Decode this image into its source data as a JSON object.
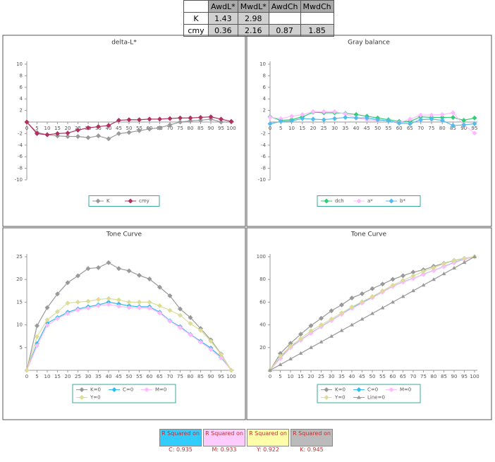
{
  "table": {
    "columns": [
      "AwdL*",
      "MwdL*",
      "AwdCh",
      "MwdCh"
    ],
    "rows": [
      {
        "label": "K",
        "cells": [
          "1.43",
          "2.98"
        ]
      },
      {
        "label": "cmy",
        "cells": [
          "0.36",
          "2.16",
          "0.87",
          "1.85"
        ]
      }
    ]
  },
  "chart_data": [
    {
      "type": "line",
      "title": "delta-L*",
      "legend": "bottom",
      "x": [
        0,
        5,
        10,
        15,
        20,
        25,
        30,
        35,
        40,
        45,
        50,
        55,
        60,
        65,
        70,
        75,
        80,
        85,
        90,
        95,
        100
      ],
      "xlim": [
        0,
        100
      ],
      "xticks": [
        0,
        5,
        10,
        15,
        20,
        25,
        30,
        35,
        40,
        45,
        50,
        55,
        60,
        65,
        70,
        75,
        80,
        85,
        90,
        95,
        100
      ],
      "ylim": [
        -10,
        10
      ],
      "yticks": [
        -10,
        -8,
        -6,
        -4,
        -2,
        2,
        4,
        6,
        8,
        10
      ],
      "series": [
        {
          "name": "K",
          "color": "#999999",
          "values": [
            0,
            -1.8,
            -2.2,
            -2.4,
            -2.5,
            -2.5,
            -2.7,
            -2.4,
            -2.9,
            -2.0,
            -1.8,
            -1.5,
            -1.2,
            -1.0,
            -0.5,
            0,
            0.2,
            0.3,
            0.5,
            0,
            0
          ]
        },
        {
          "name": "cmy",
          "color": "#b03060",
          "values": [
            0,
            -2.0,
            -2.2,
            -2.0,
            -1.9,
            -1.4,
            -1.0,
            -0.8,
            -0.6,
            0.3,
            0.4,
            0.4,
            0.5,
            0.5,
            0.6,
            0.7,
            0.7,
            0.8,
            0.9,
            0.5,
            0.1
          ]
        }
      ]
    },
    {
      "type": "line",
      "title": "Gray balance",
      "legend": "bottom",
      "x": [
        0,
        5,
        10,
        15,
        20,
        25,
        30,
        35,
        40,
        45,
        50,
        55,
        60,
        65,
        70,
        75,
        80,
        85,
        90,
        95
      ],
      "xlim": [
        0,
        95
      ],
      "xticks": [
        0,
        5,
        10,
        15,
        20,
        25,
        30,
        35,
        40,
        45,
        50,
        55,
        60,
        65,
        70,
        75,
        80,
        85,
        90,
        95
      ],
      "ylim": [
        -10,
        10
      ],
      "yticks": [
        -10,
        -8,
        -6,
        -4,
        -2,
        2,
        4,
        6,
        8,
        10
      ],
      "series": [
        {
          "name": "dch",
          "color": "#33cc77",
          "values": [
            0.9,
            0.3,
            0.4,
            0.9,
            1.7,
            1.6,
            1.6,
            1.5,
            1.3,
            1.0,
            0.7,
            0.4,
            0.1,
            0.1,
            0.9,
            0.8,
            0.8,
            0.8,
            0.3,
            0.7
          ]
        },
        {
          "name": "a*",
          "color": "#ffbbff",
          "values": [
            0.8,
            0.6,
            1.0,
            1.3,
            1.8,
            1.8,
            1.8,
            1.4,
            0.7,
            0.4,
            0.3,
            0.2,
            -0.1,
            0.5,
            1.2,
            1.2,
            1.3,
            1.6,
            -0.5,
            -1.9
          ]
        },
        {
          "name": "b*",
          "color": "#55bbee",
          "values": [
            -0.3,
            0.1,
            0.2,
            0.6,
            0.5,
            0.4,
            0.6,
            0.8,
            0.7,
            0.7,
            0.4,
            0.2,
            -0.2,
            -0.3,
            0.4,
            0.5,
            0.3,
            -0.6,
            -0.5,
            -0.3
          ]
        }
      ]
    },
    {
      "type": "line",
      "title": "Tone Curve",
      "legend": "bottom",
      "x": [
        0,
        5,
        10,
        15,
        20,
        25,
        30,
        35,
        40,
        45,
        50,
        55,
        60,
        65,
        70,
        75,
        80,
        85,
        90,
        95,
        100
      ],
      "xlim": [
        0,
        100
      ],
      "xticks": [
        0,
        5,
        10,
        15,
        20,
        25,
        30,
        35,
        40,
        45,
        50,
        55,
        60,
        65,
        70,
        75,
        80,
        85,
        90,
        95,
        100
      ],
      "ylim": [
        0,
        25
      ],
      "yticks": [
        5,
        10,
        15,
        20,
        25
      ],
      "series": [
        {
          "name": "K=0",
          "color": "#999999",
          "values": [
            0,
            9.8,
            13.8,
            16.8,
            19.3,
            20.8,
            22.4,
            22.6,
            23.7,
            22.4,
            21.9,
            20.9,
            20.1,
            18.3,
            16.4,
            13.5,
            11.6,
            9.2,
            6.7,
            3.6,
            0
          ]
        },
        {
          "name": "C=0",
          "color": "#33bbee",
          "values": [
            0,
            5.9,
            10.4,
            11.6,
            12.8,
            13.5,
            14.0,
            14.4,
            15.0,
            14.6,
            14.2,
            14.0,
            14.0,
            12.8,
            10.9,
            9.6,
            7.9,
            6.4,
            4.9,
            2.9,
            0
          ]
        },
        {
          "name": "M=0",
          "color": "#ffbbff",
          "values": [
            0,
            5.4,
            9.9,
            11.4,
            12.5,
            13.3,
            13.7,
            14.2,
            14.5,
            14.1,
            13.8,
            13.8,
            13.7,
            12.6,
            10.8,
            9.4,
            7.8,
            6.2,
            4.6,
            2.7,
            0
          ]
        },
        {
          "name": "Y=0",
          "color": "#dddd99",
          "values": [
            0,
            7.4,
            11.1,
            12.9,
            14.8,
            15.0,
            15.2,
            15.6,
            15.8,
            15.5,
            15.0,
            15.0,
            15.0,
            14.2,
            13.2,
            12.1,
            10.3,
            8.8,
            6.4,
            3.5,
            0
          ]
        }
      ]
    },
    {
      "type": "line",
      "title": "Tone Curve",
      "legend": "bottom",
      "x": [
        0,
        5,
        10,
        15,
        20,
        25,
        30,
        35,
        40,
        45,
        50,
        55,
        60,
        65,
        70,
        75,
        80,
        85,
        90,
        95,
        100
      ],
      "xlim": [
        0,
        100
      ],
      "xticks": [
        0,
        5,
        10,
        15,
        20,
        25,
        30,
        35,
        40,
        45,
        50,
        55,
        60,
        65,
        70,
        75,
        80,
        85,
        90,
        95,
        100
      ],
      "ylim": [
        0,
        100
      ],
      "yticks": [
        20,
        40,
        60,
        80,
        100
      ],
      "series": [
        {
          "name": "K=0",
          "color": "#999999",
          "values": [
            0,
            14.8,
            23.8,
            31.8,
            39.3,
            45.8,
            52.4,
            57.6,
            63.7,
            67.4,
            71.9,
            75.9,
            80.1,
            83.3,
            86.4,
            88.5,
            91.6,
            94.2,
            96.7,
            98.6,
            100
          ]
        },
        {
          "name": "C=0",
          "color": "#33bbee",
          "values": [
            0,
            10.9,
            20.4,
            26.6,
            32.8,
            38.5,
            44.0,
            49.4,
            55.0,
            59.6,
            64.2,
            69.0,
            74.0,
            77.8,
            80.9,
            84.6,
            87.9,
            91.4,
            94.9,
            97.9,
            100
          ]
        },
        {
          "name": "M=0",
          "color": "#ffbbff",
          "values": [
            0,
            10.4,
            19.9,
            26.4,
            32.5,
            38.3,
            43.7,
            49.2,
            54.5,
            59.1,
            63.8,
            68.8,
            73.7,
            77.6,
            80.8,
            84.4,
            87.8,
            91.2,
            94.6,
            97.7,
            100
          ]
        },
        {
          "name": "Y=0",
          "color": "#dddd99",
          "values": [
            0,
            12.4,
            21.1,
            27.9,
            34.8,
            40.0,
            45.2,
            50.6,
            55.8,
            60.5,
            65.0,
            70.0,
            75.0,
            79.2,
            83.2,
            87.1,
            90.3,
            93.8,
            96.4,
            98.5,
            100
          ]
        },
        {
          "name": "Line=0",
          "color": "#999999",
          "marker": "triangle",
          "values": [
            0,
            5,
            10,
            15,
            20,
            25,
            30,
            35,
            40,
            45,
            50,
            55,
            60,
            65,
            70,
            75,
            80,
            85,
            90,
            95,
            100
          ]
        }
      ]
    }
  ],
  "r_squared": [
    {
      "label": "R Squared on",
      "value": "C: 0.935",
      "color": "#33ccff"
    },
    {
      "label": "R Squared on",
      "value": "M: 0.933",
      "color": "#ffccff"
    },
    {
      "label": "R Squared on",
      "value": "Y: 0.922",
      "color": "#ffffaa"
    },
    {
      "label": "R Squared on",
      "value": "K: 0.945",
      "color": "#bbbbbb"
    }
  ]
}
